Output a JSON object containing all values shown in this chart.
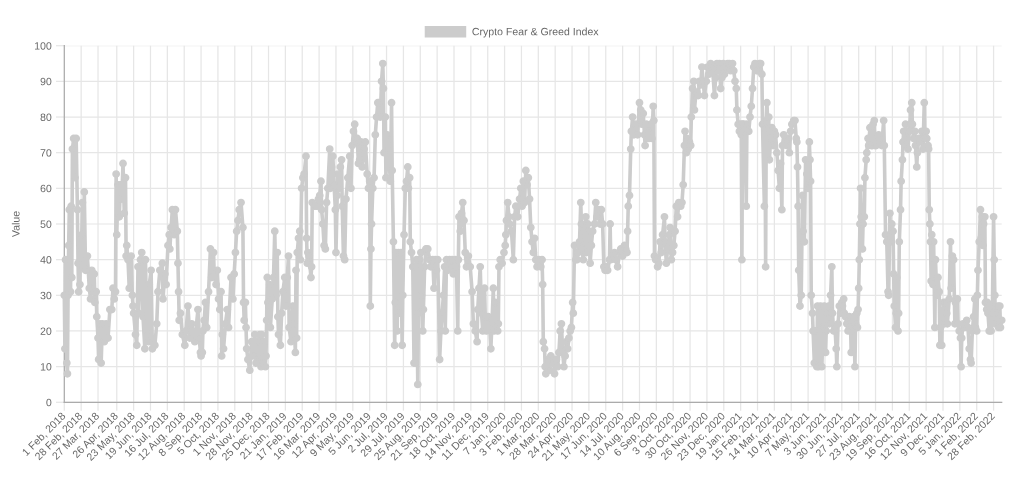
{
  "chart_data": {
    "type": "line",
    "ylabel": "Value",
    "grid": true,
    "legend": "top",
    "marker": "circle",
    "line_style": "solid",
    "xlim": [
      "2018-02-01",
      "2022-03-13"
    ],
    "ylim": [
      0,
      100
    ],
    "yticks": [
      0,
      10,
      20,
      30,
      40,
      50,
      60,
      70,
      80,
      90,
      100
    ],
    "xticks": [
      {
        "value": "2018-02-01",
        "label": "1 Feb, 2018"
      },
      {
        "value": "2018-02-28",
        "label": "28 Feb, 2018"
      },
      {
        "value": "2018-03-27",
        "label": "27 Mar, 2018"
      },
      {
        "value": "2018-04-26",
        "label": "26 Apr, 2018"
      },
      {
        "value": "2018-05-23",
        "label": "23 May, 2018"
      },
      {
        "value": "2018-06-19",
        "label": "19 Jun, 2018"
      },
      {
        "value": "2018-07-16",
        "label": "16 Jul, 2018"
      },
      {
        "value": "2018-08-12",
        "label": "12 Aug, 2018"
      },
      {
        "value": "2018-09-08",
        "label": "8 Sep, 2018"
      },
      {
        "value": "2018-10-05",
        "label": "5 Oct, 2018"
      },
      {
        "value": "2018-11-01",
        "label": "1 Nov, 2018"
      },
      {
        "value": "2018-11-28",
        "label": "28 Nov, 2018"
      },
      {
        "value": "2018-12-25",
        "label": "25 Dec, 2018"
      },
      {
        "value": "2019-01-21",
        "label": "21 Jan, 2019"
      },
      {
        "value": "2019-02-17",
        "label": "17 Feb, 2019"
      },
      {
        "value": "2019-03-16",
        "label": "16 Mar, 2019"
      },
      {
        "value": "2019-04-12",
        "label": "12 Apr, 2019"
      },
      {
        "value": "2019-05-09",
        "label": "9 May, 2019"
      },
      {
        "value": "2019-06-05",
        "label": "5 Jun, 2019"
      },
      {
        "value": "2019-07-02",
        "label": "2 Jul, 2019"
      },
      {
        "value": "2019-07-29",
        "label": "29 Jul, 2019"
      },
      {
        "value": "2019-08-25",
        "label": "25 Aug, 2019"
      },
      {
        "value": "2019-09-21",
        "label": "21 Sep, 2019"
      },
      {
        "value": "2019-10-18",
        "label": "18 Oct, 2019"
      },
      {
        "value": "2019-11-14",
        "label": "14 Nov, 2019"
      },
      {
        "value": "2019-12-11",
        "label": "11 Dec, 2019"
      },
      {
        "value": "2020-01-07",
        "label": "7 Jan, 2020"
      },
      {
        "value": "2020-02-03",
        "label": "3 Feb, 2020"
      },
      {
        "value": "2020-03-01",
        "label": "1 Mar, 2020"
      },
      {
        "value": "2020-03-28",
        "label": "28 Mar, 2020"
      },
      {
        "value": "2020-04-24",
        "label": "24 Apr, 2020"
      },
      {
        "value": "2020-05-21",
        "label": "21 May, 2020"
      },
      {
        "value": "2020-06-17",
        "label": "17 Jun, 2020"
      },
      {
        "value": "2020-07-14",
        "label": "14 Jul, 2020"
      },
      {
        "value": "2020-08-10",
        "label": "10 Aug, 2020"
      },
      {
        "value": "2020-09-06",
        "label": "6 Sep, 2020"
      },
      {
        "value": "2020-10-03",
        "label": "3 Oct, 2020"
      },
      {
        "value": "2020-10-30",
        "label": "30 Oct, 2020"
      },
      {
        "value": "2020-11-26",
        "label": "26 Nov, 2020"
      },
      {
        "value": "2020-12-23",
        "label": "23 Dec, 2020"
      },
      {
        "value": "2021-01-19",
        "label": "19 Jan, 2021"
      },
      {
        "value": "2021-02-15",
        "label": "15 Feb, 2021"
      },
      {
        "value": "2021-03-14",
        "label": "14 Mar, 2021"
      },
      {
        "value": "2021-04-10",
        "label": "10 Apr, 2021"
      },
      {
        "value": "2021-05-07",
        "label": "7 May, 2021"
      },
      {
        "value": "2021-06-03",
        "label": "3 Jun, 2021"
      },
      {
        "value": "2021-06-30",
        "label": "30 Jun, 2021"
      },
      {
        "value": "2021-07-27",
        "label": "27 Jul, 2021"
      },
      {
        "value": "2021-08-23",
        "label": "23 Aug, 2021"
      },
      {
        "value": "2021-09-19",
        "label": "19 Sep, 2021"
      },
      {
        "value": "2021-10-16",
        "label": "16 Oct, 2021"
      },
      {
        "value": "2021-11-12",
        "label": "12 Nov, 2021"
      },
      {
        "value": "2021-12-09",
        "label": "9 Dec, 2021"
      },
      {
        "value": "2022-01-05",
        "label": "5 Jan, 2022"
      },
      {
        "value": "2022-02-01",
        "label": "1 Feb, 2022"
      },
      {
        "value": "2022-02-28",
        "label": "28 Feb, 2022"
      }
    ],
    "x": [
      "2018-02-01",
      "2018-02-02",
      "2018-02-03",
      "2018-02-05",
      "2018-02-06",
      "2018-02-07",
      "2018-02-08",
      "2018-02-09",
      "2018-02-11",
      "2018-02-12",
      "2018-02-13",
      "2018-02-14",
      "2018-02-16",
      "2018-02-18",
      "2018-02-20",
      "2018-02-22",
      "2018-02-23",
      "2018-02-24",
      "2018-02-26",
      "2018-02-27",
      "2018-03-01",
      "2018-03-02",
      "2018-03-03",
      "2018-03-05",
      "2018-03-07",
      "2018-03-10",
      "2018-03-13",
      "2018-03-15",
      "2018-03-17",
      "2018-03-19",
      "2018-03-21",
      "2018-03-22",
      "2018-03-24",
      "2018-03-25",
      "2018-03-27",
      "2018-03-28",
      "2018-03-30",
      "2018-04-01",
      "2018-04-03",
      "2018-04-06",
      "2018-04-09",
      "2018-04-12",
      "2018-04-15",
      "2018-04-18",
      "2018-04-20",
      "2018-04-22",
      "2018-04-24",
      "2018-04-25",
      "2018-04-26",
      "2018-04-28",
      "2018-04-30",
      "2018-05-02",
      "2018-05-04",
      "2018-05-06",
      "2018-05-08",
      "2018-05-10",
      "2018-05-11",
      "2018-05-12",
      "2018-05-14",
      "2018-05-16",
      "2018-05-19",
      "2018-05-21",
      "2018-05-22",
      "2018-05-23",
      "2018-05-26",
      "2018-05-28",
      "2018-05-30",
      "2018-05-31",
      "2018-06-03",
      "2018-06-05",
      "2018-06-07",
      "2018-06-10",
      "2018-06-11",
      "2018-06-13",
      "2018-06-16",
      "2018-06-17",
      "2018-06-20",
      "2018-06-22",
      "2018-06-26",
      "2018-06-29",
      "2018-07-01",
      "2018-07-04",
      "2018-07-08",
      "2018-07-09",
      "2018-07-12",
      "2018-07-14",
      "2018-07-17",
      "2018-07-19",
      "2018-07-20",
      "2018-07-22",
      "2018-07-24",
      "2018-07-27",
      "2018-07-29",
      "2018-08-01",
      "2018-08-02",
      "2018-08-03",
      "2018-08-04",
      "2018-08-06",
      "2018-08-09",
      "2018-08-13",
      "2018-08-15",
      "2018-08-18",
      "2018-08-21",
      "2018-08-24",
      "2018-08-29",
      "2018-09-03",
      "2018-09-05",
      "2018-09-07",
      "2018-09-08",
      "2018-09-10",
      "2018-09-11",
      "2018-09-13",
      "2018-09-15",
      "2018-09-17",
      "2018-09-20",
      "2018-09-23",
      "2018-09-25",
      "2018-09-28",
      "2018-09-29",
      "2018-10-02",
      "2018-10-04",
      "2018-10-06",
      "2018-10-08",
      "2018-10-10",
      "2018-10-11",
      "2018-10-12",
      "2018-10-14",
      "2018-10-17",
      "2018-10-20",
      "2018-10-22",
      "2018-10-26",
      "2018-10-29",
      "2018-10-31",
      "2018-11-02",
      "2018-11-04",
      "2018-11-06",
      "2018-11-08",
      "2018-11-11",
      "2018-11-14",
      "2018-11-15",
      "2018-11-16",
      "2018-11-18",
      "2018-11-19",
      "2018-11-20",
      "2018-11-22",
      "2018-11-25",
      "2018-11-28",
      "2018-11-30",
      "2018-12-03",
      "2018-12-05",
      "2018-12-08",
      "2018-12-11",
      "2018-12-12",
      "2018-12-13",
      "2018-12-14",
      "2018-12-16",
      "2018-12-18",
      "2018-12-20",
      "2018-12-21",
      "2018-12-22",
      "2018-12-23",
      "2018-12-24",
      "2018-12-26",
      "2018-12-27",
      "2018-12-28",
      "2018-12-31",
      "2019-01-02",
      "2019-01-04",
      "2019-01-06",
      "2019-01-08",
      "2019-01-09",
      "2019-01-10",
      "2019-01-13",
      "2019-01-15",
      "2019-01-17",
      "2019-01-20",
      "2019-01-22",
      "2019-01-24",
      "2019-01-26",
      "2019-01-27",
      "2019-01-30",
      "2019-02-02",
      "2019-02-04",
      "2019-02-06",
      "2019-02-07",
      "2019-02-08",
      "2019-02-09",
      "2019-02-11",
      "2019-02-13",
      "2019-02-14",
      "2019-02-16",
      "2019-02-18",
      "2019-02-20",
      "2019-02-23",
      "2019-02-24",
      "2019-02-25",
      "2019-02-26",
      "2019-02-28",
      "2019-03-03",
      "2019-03-04",
      "2019-03-05",
      "2019-03-09",
      "2019-03-13",
      "2019-03-15",
      "2019-03-17",
      "2019-03-19",
      "2019-03-20",
      "2019-03-22",
      "2019-03-24",
      "2019-03-26",
      "2019-03-28",
      "2019-03-30",
      "2019-04-02",
      "2019-04-03",
      "2019-04-05",
      "2019-04-07",
      "2019-04-09",
      "2019-04-11",
      "2019-04-12",
      "2019-04-14",
      "2019-04-15",
      "2019-04-17",
      "2019-04-19",
      "2019-04-21",
      "2019-04-22",
      "2019-04-24",
      "2019-04-26",
      "2019-04-28",
      "2019-05-01",
      "2019-05-04",
      "2019-05-06",
      "2019-05-08",
      "2019-05-10",
      "2019-05-12",
      "2019-05-14",
      "2019-05-16",
      "2019-05-18",
      "2019-05-20",
      "2019-05-22",
      "2019-05-24",
      "2019-05-27",
      "2019-05-29",
      "2019-06-01",
      "2019-06-03",
      "2019-06-05",
      "2019-06-06",
      "2019-06-07",
      "2019-06-08",
      "2019-06-10",
      "2019-06-12",
      "2019-06-14",
      "2019-06-16",
      "2019-06-18",
      "2019-06-20",
      "2019-06-22",
      "2019-06-24",
      "2019-06-26",
      "2019-06-27",
      "2019-06-28",
      "2019-06-30",
      "2019-07-01",
      "2019-07-03",
      "2019-07-05",
      "2019-07-08",
      "2019-07-10",
      "2019-07-11",
      "2019-07-13",
      "2019-07-15",
      "2019-07-16",
      "2019-07-17",
      "2019-07-19",
      "2019-07-21",
      "2019-07-23",
      "2019-07-25",
      "2019-07-27",
      "2019-07-28",
      "2019-07-30",
      "2019-08-01",
      "2019-08-03",
      "2019-08-05",
      "2019-08-06",
      "2019-08-08",
      "2019-08-09",
      "2019-08-11",
      "2019-08-13",
      "2019-08-15",
      "2019-08-16",
      "2019-08-17",
      "2019-08-19",
      "2019-08-21",
      "2019-08-22",
      "2019-08-24",
      "2019-08-26",
      "2019-08-27",
      "2019-08-29",
      "2019-08-30",
      "2019-09-01",
      "2019-09-03",
      "2019-09-06",
      "2019-09-09",
      "2019-09-11",
      "2019-09-14",
      "2019-09-16",
      "2019-09-18",
      "2019-09-20",
      "2019-09-22",
      "2019-09-25",
      "2019-09-27",
      "2019-09-29",
      "2019-10-01",
      "2019-10-03",
      "2019-10-04",
      "2019-10-06",
      "2019-10-08",
      "2019-10-11",
      "2019-10-13",
      "2019-10-15",
      "2019-10-17",
      "2019-10-20",
      "2019-10-22",
      "2019-10-24",
      "2019-10-25",
      "2019-10-26",
      "2019-10-28",
      "2019-10-30",
      "2019-11-01",
      "2019-11-03",
      "2019-11-05",
      "2019-11-07",
      "2019-11-10",
      "2019-11-13",
      "2019-11-16",
      "2019-11-18",
      "2019-11-21",
      "2019-11-24",
      "2019-11-25",
      "2019-11-27",
      "2019-11-29",
      "2019-12-01",
      "2019-12-03",
      "2019-12-06",
      "2019-12-07",
      "2019-12-09",
      "2019-12-12",
      "2019-12-14",
      "2019-12-16",
      "2019-12-18",
      "2019-12-20",
      "2019-12-21",
      "2019-12-23",
      "2019-12-25",
      "2019-12-27",
      "2019-12-28",
      "2019-12-29",
      "2019-12-31",
      "2020-01-03",
      "2020-01-06",
      "2020-01-08",
      "2020-01-09",
      "2020-01-10",
      "2020-01-12",
      "2020-01-14",
      "2020-01-15",
      "2020-01-18",
      "2020-01-21",
      "2020-01-23",
      "2020-01-25",
      "2020-01-28",
      "2020-01-31",
      "2020-02-02",
      "2020-02-04",
      "2020-02-06",
      "2020-02-08",
      "2020-02-10",
      "2020-02-12",
      "2020-02-14",
      "2020-02-16",
      "2020-02-18",
      "2020-02-20",
      "2020-02-22",
      "2020-02-24",
      "2020-02-26",
      "2020-02-28",
      "2020-03-02",
      "2020-03-05",
      "2020-03-07",
      "2020-03-08",
      "2020-03-09",
      "2020-03-11",
      "2020-03-12",
      "2020-03-13",
      "2020-03-15",
      "2020-03-17",
      "2020-03-19",
      "2020-03-21",
      "2020-03-23",
      "2020-03-25",
      "2020-03-27",
      "2020-03-30",
      "2020-04-01",
      "2020-04-03",
      "2020-04-05",
      "2020-04-07",
      "2020-04-09",
      "2020-04-11",
      "2020-04-13",
      "2020-04-15",
      "2020-04-17",
      "2020-04-19",
      "2020-04-21",
      "2020-04-23",
      "2020-04-25",
      "2020-04-26",
      "2020-04-28",
      "2020-04-30",
      "2020-05-02",
      "2020-05-04",
      "2020-05-06",
      "2020-05-08",
      "2020-05-09",
      "2020-05-10",
      "2020-05-12",
      "2020-05-14",
      "2020-05-16",
      "2020-05-17",
      "2020-05-19",
      "2020-05-21",
      "2020-05-23",
      "2020-05-25",
      "2020-05-27",
      "2020-05-30",
      "2020-06-01",
      "2020-06-03",
      "2020-06-05",
      "2020-06-08",
      "2020-06-10",
      "2020-06-12",
      "2020-06-14",
      "2020-06-16",
      "2020-06-18",
      "2020-06-20",
      "2020-06-23",
      "2020-06-24",
      "2020-06-25",
      "2020-06-28",
      "2020-07-01",
      "2020-07-03",
      "2020-07-06",
      "2020-07-09",
      "2020-07-11",
      "2020-07-14",
      "2020-07-17",
      "2020-07-19",
      "2020-07-21",
      "2020-07-22",
      "2020-07-23",
      "2020-07-25",
      "2020-07-27",
      "2020-07-28",
      "2020-07-30",
      "2020-08-01",
      "2020-08-04",
      "2020-08-07",
      "2020-08-10",
      "2020-08-12",
      "2020-08-14",
      "2020-08-16",
      "2020-08-18",
      "2020-08-19",
      "2020-08-21",
      "2020-08-23",
      "2020-08-25",
      "2020-08-28",
      "2020-08-30",
      "2020-09-01",
      "2020-09-02",
      "2020-09-03",
      "2020-09-05",
      "2020-09-08",
      "2020-09-10",
      "2020-09-12",
      "2020-09-14",
      "2020-09-16",
      "2020-09-19",
      "2020-09-20",
      "2020-09-22",
      "2020-09-24",
      "2020-09-27",
      "2020-09-28",
      "2020-09-30",
      "2020-10-02",
      "2020-10-04",
      "2020-10-06",
      "2020-10-08",
      "2020-10-10",
      "2020-10-12",
      "2020-10-15",
      "2020-10-17",
      "2020-10-19",
      "2020-10-21",
      "2020-10-22",
      "2020-10-24",
      "2020-10-25",
      "2020-10-27",
      "2020-10-29",
      "2020-10-31",
      "2020-11-01",
      "2020-11-03",
      "2020-11-05",
      "2020-11-06",
      "2020-11-08",
      "2020-11-10",
      "2020-11-12",
      "2020-11-14",
      "2020-11-16",
      "2020-11-18",
      "2020-11-20",
      "2020-11-22",
      "2020-11-25",
      "2020-11-27",
      "2020-11-29",
      "2020-12-02",
      "2020-12-05",
      "2020-12-08",
      "2020-12-10",
      "2020-12-12",
      "2020-12-14",
      "2020-12-16",
      "2020-12-18",
      "2020-12-20",
      "2020-12-22",
      "2020-12-24",
      "2020-12-27",
      "2020-12-29",
      "2021-01-01",
      "2021-01-03",
      "2021-01-06",
      "2021-01-08",
      "2021-01-10",
      "2021-01-12",
      "2021-01-13",
      "2021-01-15",
      "2021-01-17",
      "2021-01-19",
      "2021-01-20",
      "2021-01-21",
      "2021-01-22",
      "2021-01-24",
      "2021-01-26",
      "2021-01-28",
      "2021-01-29",
      "2021-02-01",
      "2021-02-03",
      "2021-02-05",
      "2021-02-07",
      "2021-02-09",
      "2021-02-11",
      "2021-02-14",
      "2021-02-16",
      "2021-02-18",
      "2021-02-20",
      "2021-02-22",
      "2021-02-23",
      "2021-02-26",
      "2021-02-27",
      "2021-02-28",
      "2021-03-01",
      "2021-03-02",
      "2021-03-04",
      "2021-03-05",
      "2021-03-06",
      "2021-03-08",
      "2021-03-10",
      "2021-03-12",
      "2021-03-14",
      "2021-03-16",
      "2021-03-18",
      "2021-03-20",
      "2021-03-22",
      "2021-03-24",
      "2021-03-26",
      "2021-03-27",
      "2021-03-29",
      "2021-04-01",
      "2021-04-03",
      "2021-04-05",
      "2021-04-07",
      "2021-04-09",
      "2021-04-11",
      "2021-04-14",
      "2021-04-16",
      "2021-04-18",
      "2021-04-19",
      "2021-04-20",
      "2021-04-21",
      "2021-04-22",
      "2021-04-24",
      "2021-04-26",
      "2021-04-28",
      "2021-04-29",
      "2021-05-01",
      "2021-05-03",
      "2021-05-05",
      "2021-05-07",
      "2021-05-09",
      "2021-05-10",
      "2021-05-11",
      "2021-05-12",
      "2021-05-14",
      "2021-05-15",
      "2021-05-17",
      "2021-05-19",
      "2021-05-21",
      "2021-05-22",
      "2021-05-24",
      "2021-05-26",
      "2021-05-27",
      "2021-05-29",
      "2021-05-31",
      "2021-06-02",
      "2021-06-04",
      "2021-06-05",
      "2021-06-07",
      "2021-06-09",
      "2021-06-10",
      "2021-06-12",
      "2021-06-14",
      "2021-06-15",
      "2021-06-17",
      "2021-06-19",
      "2021-06-21",
      "2021-06-22",
      "2021-06-24",
      "2021-06-26",
      "2021-06-28",
      "2021-06-30",
      "2021-07-01",
      "2021-07-03",
      "2021-07-04",
      "2021-07-06",
      "2021-07-08",
      "2021-07-10",
      "2021-07-12",
      "2021-07-14",
      "2021-07-15",
      "2021-07-17",
      "2021-07-19",
      "2021-07-21",
      "2021-07-22",
      "2021-07-24",
      "2021-07-25",
      "2021-07-26",
      "2021-07-27",
      "2021-07-28",
      "2021-07-29",
      "2021-07-30",
      "2021-07-31",
      "2021-08-02",
      "2021-08-03",
      "2021-08-05",
      "2021-08-06",
      "2021-08-08",
      "2021-08-09",
      "2021-08-11",
      "2021-08-12",
      "2021-08-14",
      "2021-08-16",
      "2021-08-18",
      "2021-08-19",
      "2021-08-21",
      "2021-08-22",
      "2021-08-24",
      "2021-08-26",
      "2021-08-28",
      "2021-08-31",
      "2021-09-02",
      "2021-09-05",
      "2021-09-06",
      "2021-09-08",
      "2021-09-10",
      "2021-09-12",
      "2021-09-13",
      "2021-09-15",
      "2021-09-16",
      "2021-09-18",
      "2021-09-20",
      "2021-09-21",
      "2021-09-22",
      "2021-09-24",
      "2021-09-25",
      "2021-09-26",
      "2021-09-28",
      "2021-09-29",
      "2021-09-30",
      "2021-10-02",
      "2021-10-03",
      "2021-10-05",
      "2021-10-06",
      "2021-10-07",
      "2021-10-09",
      "2021-10-10",
      "2021-10-12",
      "2021-10-14",
      "2021-10-16",
      "2021-10-17",
      "2021-10-18",
      "2021-10-20",
      "2021-10-21",
      "2021-10-23",
      "2021-10-25",
      "2021-10-26",
      "2021-10-28",
      "2021-10-29",
      "2021-10-31",
      "2021-11-03",
      "2021-11-05",
      "2021-11-07",
      "2021-11-09",
      "2021-11-10",
      "2021-11-12",
      "2021-11-13",
      "2021-11-15",
      "2021-11-16",
      "2021-11-17",
      "2021-11-18",
      "2021-11-19",
      "2021-11-20",
      "2021-11-21",
      "2021-11-23",
      "2021-11-24",
      "2021-11-26",
      "2021-11-27",
      "2021-11-29",
      "2021-12-01",
      "2021-12-03",
      "2021-12-04",
      "2021-12-05",
      "2021-12-07",
      "2021-12-08",
      "2021-12-10",
      "2021-12-11",
      "2021-12-13",
      "2021-12-15",
      "2021-12-16",
      "2021-12-19",
      "2021-12-21",
      "2021-12-22",
      "2021-12-24",
      "2021-12-26",
      "2021-12-28",
      "2021-12-29",
      "2022-01-01",
      "2022-01-02",
      "2022-01-04",
      "2022-01-06",
      "2022-01-07",
      "2022-01-08",
      "2022-01-10",
      "2022-01-12",
      "2022-01-14",
      "2022-01-16",
      "2022-01-18",
      "2022-01-20",
      "2022-01-22",
      "2022-01-23",
      "2022-01-25",
      "2022-01-27",
      "2022-01-29",
      "2022-01-30",
      "2022-02-01",
      "2022-02-02",
      "2022-02-03",
      "2022-02-05",
      "2022-02-07",
      "2022-02-08",
      "2022-02-10",
      "2022-02-11",
      "2022-02-12",
      "2022-02-14",
      "2022-02-15",
      "2022-02-17",
      "2022-02-18",
      "2022-02-19",
      "2022-02-21",
      "2022-02-22",
      "2022-02-24",
      "2022-02-26",
      "2022-02-28",
      "2022-03-01",
      "2022-03-02",
      "2022-03-03",
      "2022-03-05",
      "2022-03-07",
      "2022-03-08",
      "2022-03-10",
      "2022-03-11",
      "2022-03-13"
    ],
    "series": [
      {
        "name": "Crypto Fear & Greed Index",
        "color": "#cccccc",
        "values": [
          30,
          15,
          40,
          11,
          8,
          30,
          44,
          54,
          31,
          55,
          35,
          71,
          74,
          63,
          74,
          54,
          39,
          31,
          33,
          44,
          47,
          56,
          38,
          59,
          37,
          41,
          32,
          29,
          37,
          31,
          36,
          28,
          31,
          24,
          18,
          12,
          22,
          11,
          22,
          17,
          22,
          18,
          26,
          26,
          32,
          29,
          31,
          64,
          47,
          61,
          52,
          61,
          57,
          67,
          53,
          63,
          41,
          44,
          40,
          32,
          41,
          30,
          27,
          25,
          19,
          16,
          38,
          25,
          40,
          42,
          24,
          15,
          40,
          20,
          17,
          33,
          37,
          15,
          16,
          22,
          31,
          37,
          39,
          29,
          36,
          33,
          44,
          47,
          43,
          49,
          54,
          47,
          54,
          48,
          39,
          31,
          23,
          25,
          19,
          16,
          20,
          27,
          18,
          22,
          17,
          26,
          18,
          14,
          13,
          14,
          20,
          23,
          28,
          21,
          31,
          43,
          35,
          42,
          36,
          33,
          37,
          29,
          26,
          31,
          13,
          19,
          15,
          22,
          26,
          21,
          35,
          29,
          36,
          42,
          48,
          51,
          54,
          56,
          49,
          28,
          23,
          28,
          21,
          15,
          12,
          9,
          17,
          13,
          19,
          11,
          17,
          19,
          12,
          10,
          19,
          11,
          17,
          10,
          13,
          23,
          35,
          28,
          27,
          33,
          21,
          29,
          35,
          48,
          30,
          42,
          24,
          19,
          16,
          25,
          31,
          35,
          27,
          35,
          41,
          21,
          17,
          27,
          22,
          14,
          37,
          18,
          42,
          46,
          48,
          40,
          60,
          63,
          64,
          69,
          46,
          39,
          42,
          41,
          35,
          38,
          56,
          55,
          55,
          57,
          58,
          62,
          54,
          50,
          44,
          43,
          56,
          60,
          71,
          60,
          66,
          69,
          61,
          54,
          42,
          58,
          64,
          60,
          66,
          68,
          55,
          41,
          40,
          57,
          63,
          69,
          60,
          72,
          76,
          78,
          73,
          74,
          67,
          68,
          73,
          66,
          71,
          73,
          64,
          60,
          62,
          27,
          43,
          50,
          60,
          63,
          75,
          80,
          84,
          84,
          80,
          90,
          95,
          88,
          70,
          80,
          63,
          75,
          72,
          62,
          84,
          65,
          45,
          16,
          28,
          42,
          20,
          42,
          25,
          42,
          16,
          30,
          47,
          60,
          62,
          66,
          60,
          63,
          45,
          42,
          38,
          11,
          38,
          11,
          40,
          5,
          25,
          40,
          42,
          30,
          20,
          26,
          38,
          43,
          43,
          40,
          38,
          40,
          32,
          40,
          37,
          40,
          12,
          20,
          25,
          30,
          38,
          20,
          40,
          37,
          40,
          38,
          40,
          36,
          40,
          38,
          20,
          40,
          52,
          48,
          53,
          56,
          51,
          42,
          38,
          41,
          38,
          31,
          22,
          20,
          17,
          26,
          32,
          38,
          25,
          20,
          32,
          24,
          20,
          24,
          22,
          15,
          23,
          32,
          20,
          28,
          22,
          20,
          22,
          38,
          40,
          39,
          42,
          44,
          47,
          51,
          56,
          52,
          50,
          48,
          40,
          52,
          55,
          52,
          57,
          60,
          55,
          62,
          56,
          65,
          61,
          63,
          57,
          49,
          45,
          42,
          46,
          40,
          38,
          40,
          38,
          40,
          33,
          17,
          15,
          10,
          8,
          10,
          12,
          9,
          13,
          11,
          12,
          8,
          12,
          10,
          14,
          20,
          22,
          14,
          10,
          13,
          17,
          15,
          18,
          20,
          21,
          28,
          25,
          44,
          40,
          40,
          42,
          45,
          56,
          50,
          43,
          40,
          48,
          52,
          42,
          50,
          48,
          39,
          44,
          48,
          50,
          56,
          52,
          54,
          50,
          54,
          50,
          38,
          37,
          38,
          37,
          40,
          50,
          40,
          41,
          42,
          40,
          38,
          42,
          43,
          41,
          44,
          43,
          42,
          48,
          55,
          58,
          71,
          76,
          80,
          75,
          78,
          75,
          84,
          82,
          78,
          81,
          75,
          72,
          78,
          76,
          74,
          78,
          74,
          83,
          79,
          41,
          40,
          38,
          39,
          45,
          42,
          47,
          52,
          45,
          39,
          43,
          47,
          49,
          40,
          42,
          44,
          48,
          55,
          52,
          56,
          55,
          56,
          61,
          72,
          76,
          70,
          74,
          71,
          73,
          72,
          80,
          88,
          90,
          82,
          86,
          87,
          86,
          90,
          89,
          94,
          90,
          86,
          90,
          94,
          92,
          95,
          94,
          86,
          91,
          95,
          93,
          95,
          88,
          91,
          95,
          92,
          94,
          95,
          95,
          93,
          95,
          93,
          90,
          88,
          82,
          78,
          76,
          78,
          75,
          40,
          78,
          78,
          76,
          55,
          78,
          76,
          80,
          83,
          88,
          94,
          95,
          93,
          93,
          95,
          95,
          92,
          78,
          55,
          77,
          38,
          79,
          84,
          77,
          80,
          68,
          74,
          77,
          72,
          76,
          75,
          70,
          65,
          60,
          67,
          54,
          72,
          75,
          73,
          72,
          74,
          70,
          76,
          78,
          79,
          79,
          74,
          73,
          66,
          55,
          37,
          27,
          30,
          58,
          48,
          45,
          68,
          64,
          60,
          73,
          68,
          62,
          30,
          25,
          20,
          11,
          20,
          10,
          27,
          10,
          20,
          27,
          10,
          21,
          27,
          14,
          20,
          25,
          27,
          22,
          30,
          38,
          25,
          20,
          21,
          15,
          10,
          22,
          27,
          25,
          28,
          27,
          29,
          25,
          24,
          22,
          20,
          24,
          21,
          14,
          20,
          24,
          10,
          22,
          25,
          21,
          26,
          32,
          40,
          50,
          60,
          52,
          43,
          50,
          52,
          63,
          68,
          70,
          74,
          72,
          77,
          72,
          72,
          78,
          79,
          72,
          72,
          73,
          75,
          73,
          72,
          79,
          72,
          47,
          45,
          31,
          30,
          53,
          45,
          50,
          48,
          36,
          27,
          21,
          25,
          35,
          20,
          25,
          45,
          54,
          62,
          68,
          73,
          76,
          72,
          78,
          74,
          71,
          76,
          78,
          82,
          84,
          78,
          74,
          76,
          72,
          66,
          70,
          74,
          73,
          76,
          71,
          84,
          74,
          76,
          74,
          72,
          71,
          54,
          50,
          45,
          34,
          47,
          33,
          45,
          21,
          40,
          30,
          35,
          31,
          16,
          21,
          16,
          25,
          28,
          22,
          28,
          25,
          22,
          29,
          45,
          32,
          41,
          40,
          22,
          28,
          29,
          22,
          20,
          18,
          10,
          18,
          22,
          21,
          22,
          23,
          21,
          15,
          12,
          11,
          20,
          24,
          29,
          21,
          20,
          30,
          37,
          45,
          54,
          46,
          52,
          44,
          50,
          52,
          28,
          26,
          28,
          25,
          20,
          27,
          20,
          25,
          52,
          40,
          30,
          22,
          25,
          27,
          21,
          27,
          21,
          23
        ]
      }
    ]
  }
}
